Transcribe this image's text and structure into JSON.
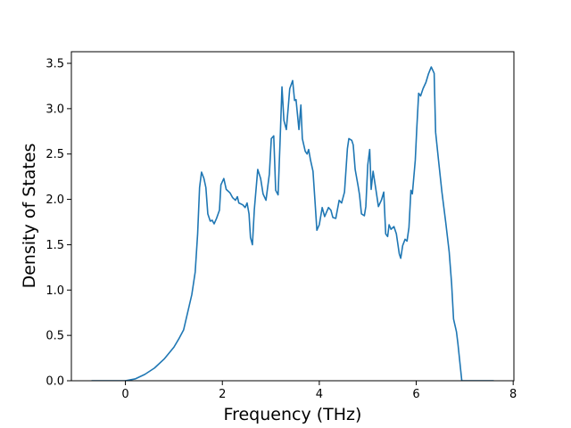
{
  "chart_data": {
    "type": "line",
    "xlabel": "Frequency (THz)",
    "ylabel": "Density of States",
    "x": [
      -0.7,
      0,
      0.2,
      0.4,
      0.6,
      0.8,
      1.0,
      1.1,
      1.2,
      1.37,
      1.44,
      1.49,
      1.53,
      1.57,
      1.62,
      1.66,
      1.7,
      1.75,
      1.79,
      1.83,
      1.88,
      1.94,
      1.97,
      2.03,
      2.08,
      2.16,
      2.21,
      2.27,
      2.31,
      2.34,
      2.42,
      2.47,
      2.51,
      2.55,
      2.58,
      2.62,
      2.66,
      2.73,
      2.79,
      2.84,
      2.9,
      2.97,
      3.01,
      3.06,
      3.1,
      3.15,
      3.19,
      3.23,
      3.27,
      3.32,
      3.36,
      3.39,
      3.45,
      3.49,
      3.52,
      3.58,
      3.62,
      3.65,
      3.71,
      3.75,
      3.78,
      3.82,
      3.87,
      3.91,
      3.95,
      4.0,
      4.06,
      4.11,
      4.19,
      4.24,
      4.28,
      4.34,
      4.41,
      4.46,
      4.52,
      4.58,
      4.61,
      4.67,
      4.7,
      4.74,
      4.8,
      4.83,
      4.87,
      4.93,
      4.96,
      5.0,
      5.04,
      5.07,
      5.11,
      5.17,
      5.22,
      5.28,
      5.33,
      5.37,
      5.41,
      5.44,
      5.48,
      5.54,
      5.59,
      5.65,
      5.68,
      5.72,
      5.77,
      5.81,
      5.85,
      5.89,
      5.92,
      5.98,
      6.01,
      6.05,
      6.09,
      6.14,
      6.2,
      6.25,
      6.31,
      6.37,
      6.4,
      6.46,
      6.53,
      6.61,
      6.68,
      6.73,
      6.77,
      6.83,
      6.86,
      6.94,
      7.6
    ],
    "series": [
      {
        "color": "#1f77b4",
        "values": [
          0,
          0,
          0.02,
          0.07,
          0.14,
          0.24,
          0.37,
          0.46,
          0.56,
          0.95,
          1.2,
          1.62,
          2.13,
          2.3,
          2.23,
          2.13,
          1.84,
          1.76,
          1.77,
          1.73,
          1.79,
          1.88,
          2.16,
          2.23,
          2.11,
          2.07,
          2.02,
          1.99,
          2.03,
          1.96,
          1.94,
          1.91,
          1.96,
          1.84,
          1.58,
          1.5,
          1.89,
          2.33,
          2.23,
          2.06,
          1.99,
          2.28,
          2.67,
          2.7,
          2.1,
          2.05,
          2.63,
          3.24,
          2.87,
          2.77,
          3.02,
          3.22,
          3.31,
          3.09,
          3.1,
          2.77,
          3.04,
          2.67,
          2.53,
          2.5,
          2.55,
          2.43,
          2.31,
          1.99,
          1.66,
          1.72,
          1.91,
          1.81,
          1.91,
          1.88,
          1.8,
          1.79,
          1.99,
          1.96,
          2.08,
          2.56,
          2.67,
          2.65,
          2.6,
          2.33,
          2.15,
          2.05,
          1.84,
          1.82,
          1.92,
          2.38,
          2.55,
          2.11,
          2.31,
          2.1,
          1.92,
          1.99,
          2.08,
          1.62,
          1.59,
          1.72,
          1.67,
          1.7,
          1.62,
          1.4,
          1.35,
          1.49,
          1.56,
          1.54,
          1.69,
          2.1,
          2.06,
          2.43,
          2.77,
          3.17,
          3.14,
          3.22,
          3.29,
          3.38,
          3.46,
          3.39,
          2.74,
          2.43,
          2.08,
          1.74,
          1.42,
          1.07,
          0.68,
          0.54,
          0.41,
          0,
          0
        ]
      }
    ],
    "xlim": [
      -1.115,
      8.015
    ],
    "ylim": [
      0,
      3.628
    ],
    "xticks": [
      0,
      2,
      4,
      6,
      8
    ],
    "yticks": [
      {
        "value": 0,
        "label": "0.0"
      },
      0.5,
      {
        "value": 1,
        "label": "1.0"
      },
      1.5,
      {
        "value": 2,
        "label": "2.0"
      },
      2.5,
      {
        "value": 3,
        "label": "3.0"
      },
      3.5
    ],
    "grid": false
  }
}
